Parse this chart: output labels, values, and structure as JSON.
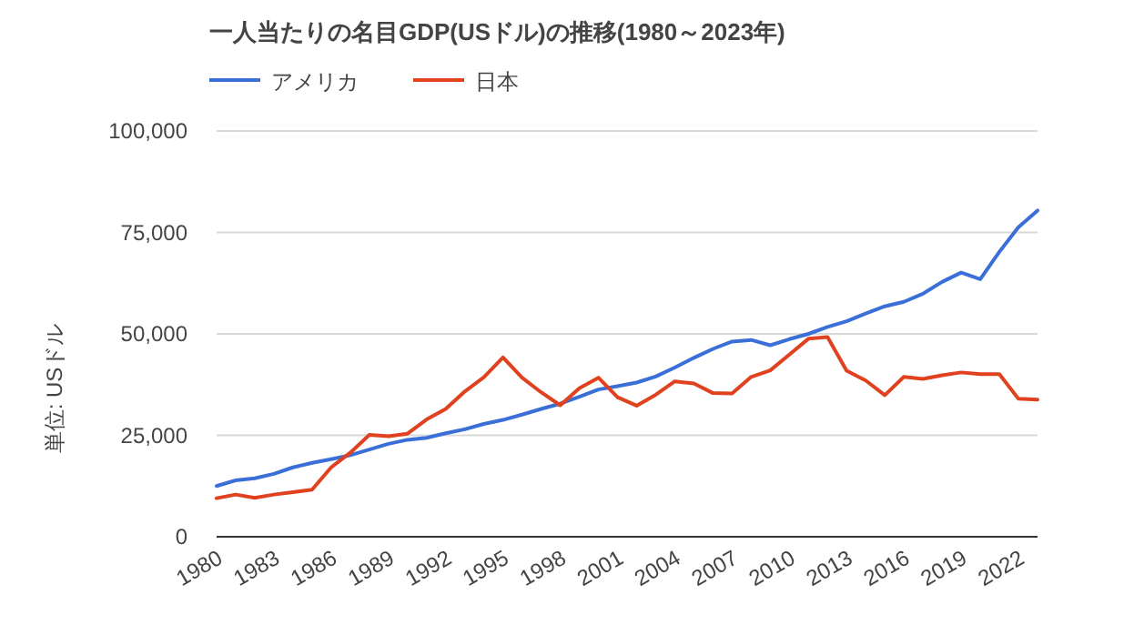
{
  "chart_data": {
    "type": "line",
    "title": "一人当たりの名目GDP(USドル)の推移(1980～2023年)",
    "ylabel": "単位: USドル",
    "x": [
      1980,
      1981,
      1982,
      1983,
      1984,
      1985,
      1986,
      1987,
      1988,
      1989,
      1990,
      1991,
      1992,
      1993,
      1994,
      1995,
      1996,
      1997,
      1998,
      1999,
      2000,
      2001,
      2002,
      2003,
      2004,
      2005,
      2006,
      2007,
      2008,
      2009,
      2010,
      2011,
      2012,
      2013,
      2014,
      2015,
      2016,
      2017,
      2018,
      2019,
      2020,
      2021,
      2022,
      2023
    ],
    "series": [
      {
        "name": "アメリカ",
        "color": "#3a6fd8",
        "values": [
          12500,
          13900,
          14400,
          15500,
          17100,
          18200,
          19100,
          20100,
          21500,
          22900,
          23900,
          24400,
          25500,
          26500,
          27800,
          28800,
          30100,
          31500,
          32800,
          34500,
          36300,
          37100,
          38000,
          39500,
          41700,
          44100,
          46300,
          48100,
          48500,
          47200,
          48700,
          50000,
          51700,
          53100,
          55000,
          56800,
          57900,
          59900,
          62800,
          65100,
          63500,
          70200,
          76300,
          80400
        ]
      },
      {
        "name": "日本",
        "color": "#e0411f",
        "values": [
          9500,
          10400,
          9600,
          10400,
          11000,
          11600,
          17100,
          20700,
          25100,
          24800,
          25400,
          28900,
          31500,
          35800,
          39300,
          44200,
          39200,
          35600,
          32400,
          36600,
          39200,
          34400,
          32300,
          35000,
          38300,
          37800,
          35400,
          35300,
          39400,
          41000,
          44900,
          48800,
          49200,
          40900,
          38500,
          34900,
          39400,
          38900,
          39800,
          40500,
          40100,
          40100,
          34000,
          33800
        ]
      }
    ],
    "xlim": [
      1980,
      2023
    ],
    "xticks": [
      {
        "value": 1980,
        "label": "1980"
      },
      {
        "value": 1983,
        "label": "1983"
      },
      {
        "value": 1986,
        "label": "1986"
      },
      {
        "value": 1989,
        "label": "1989"
      },
      {
        "value": 1992,
        "label": "1992"
      },
      {
        "value": 1995,
        "label": "1995"
      },
      {
        "value": 1998,
        "label": "1998"
      },
      {
        "value": 2001,
        "label": "2001"
      },
      {
        "value": 2004,
        "label": "2004"
      },
      {
        "value": 2007,
        "label": "2007"
      },
      {
        "value": 2010,
        "label": "2010"
      },
      {
        "value": 2013,
        "label": "2013"
      },
      {
        "value": 2016,
        "label": "2016"
      },
      {
        "value": 2019,
        "label": "2019"
      },
      {
        "value": 2022,
        "label": "2022"
      }
    ],
    "ylim": [
      0,
      100000
    ],
    "yticks": [
      {
        "value": 0,
        "label": "0"
      },
      {
        "value": 25000,
        "label": "25,000"
      },
      {
        "value": 50000,
        "label": "50,000"
      },
      {
        "value": 75000,
        "label": "75,000"
      },
      {
        "value": 100000,
        "label": "100,000"
      }
    ],
    "grid": "y",
    "legend": "top left",
    "marker": "none",
    "line_style": "solid"
  }
}
